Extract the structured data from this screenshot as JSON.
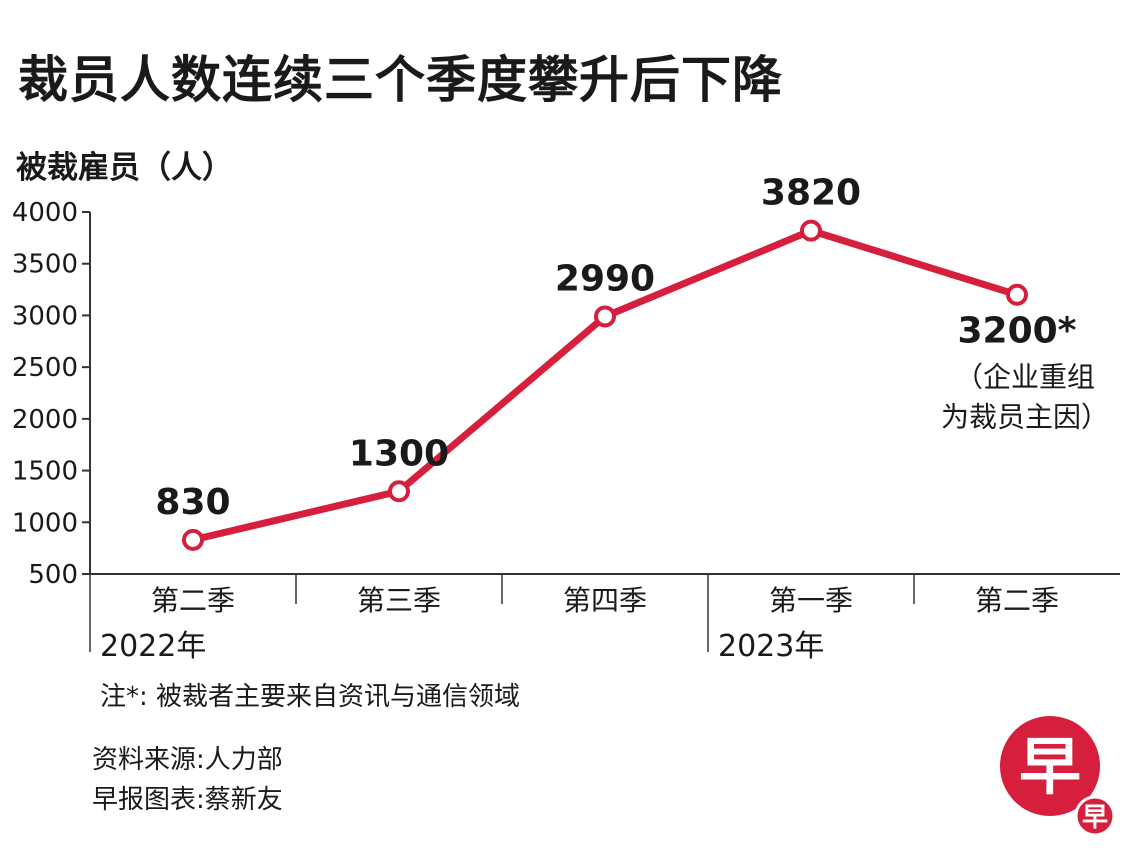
{
  "title": "裁员人数连续三个季度攀升后下降",
  "colors": {
    "line": "#d61f3c",
    "axis": "#333333",
    "logo": "#d61f3c"
  },
  "chart_data": {
    "type": "line",
    "ylabel": "被裁雇员（人）",
    "ylim": [
      500,
      4000
    ],
    "yticks": [
      500,
      1000,
      1500,
      2000,
      2500,
      3000,
      3500,
      4000
    ],
    "grid": false,
    "categories": [
      "第二季",
      "第三季",
      "第四季",
      "第一季",
      "第二季"
    ],
    "year_labels": [
      {
        "label": "2022年",
        "start_index": 0
      },
      {
        "label": "2023年",
        "start_index": 3
      }
    ],
    "values": [
      830,
      1300,
      2990,
      3820,
      3200
    ],
    "data_labels": [
      "830",
      "1300",
      "2990",
      "3820",
      "3200*"
    ],
    "annotations": [
      {
        "index": 4,
        "lines": [
          "（企业重组",
          "为裁员主因）"
        ]
      }
    ]
  },
  "note": "注*: 被裁者主要来自资讯与通信领域",
  "source": [
    "资料来源:人力部",
    "早报图表:蔡新友"
  ],
  "logo": {
    "main": "早",
    "small": "早",
    "icon": "zaobao-logo"
  }
}
